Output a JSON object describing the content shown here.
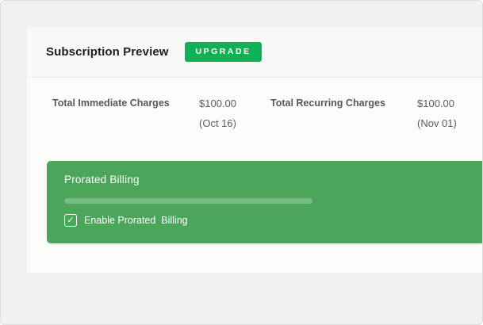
{
  "header": {
    "title": "Subscription Preview",
    "badge_label": "UPGRADE"
  },
  "charges": [
    {
      "label": "Total Immediate Charges",
      "amount": "$100.00",
      "date": "(Oct 16)"
    },
    {
      "label": "Total Recurring Charges",
      "amount": "$100.00",
      "date": "(Nov 01)"
    }
  ],
  "prorated_billing": {
    "title": "Prorated Billing",
    "checkbox_label": "Enable Prorated  Billing",
    "checkbox_checked": true,
    "progress_percent": 62
  },
  "icons": {
    "checkbox_check": "✓"
  },
  "colors": {
    "badge_green": "#10b156",
    "panel_green": "#4ba55b",
    "frame_background": "#f1f1f0",
    "card_background": "#fcfcfb"
  }
}
